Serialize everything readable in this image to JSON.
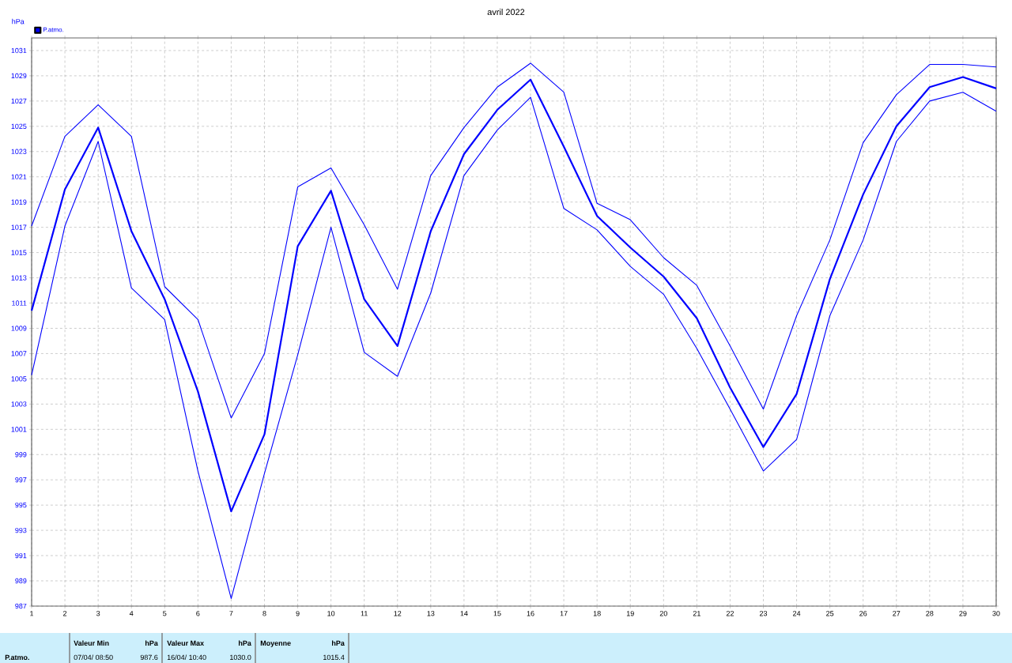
{
  "chart_data": {
    "type": "line",
    "title": "avril 2022",
    "ylabel": "hPa",
    "x": [
      1,
      2,
      3,
      4,
      5,
      6,
      7,
      8,
      9,
      10,
      11,
      12,
      13,
      14,
      15,
      16,
      17,
      18,
      19,
      20,
      21,
      22,
      23,
      24,
      25,
      26,
      27,
      28,
      29,
      30
    ],
    "series": [
      {
        "color": "#0000ff",
        "values": [
          1017.1,
          1024.2,
          1026.7,
          1024.2,
          1012.3,
          1009.7,
          1001.9,
          1007.0,
          1020.2,
          1021.7,
          1017.2,
          1012.1,
          1021.1,
          1024.9,
          1028.1,
          1030.0,
          1027.7,
          1018.9,
          1017.6,
          1014.6,
          1012.4,
          1007.6,
          1002.6,
          1010.0,
          1016.0,
          1023.7,
          1027.5,
          1029.9,
          1029.9,
          1029.7
        ]
      },
      {
        "name": "P.atmo.",
        "color": "#0000ff",
        "values": [
          1010.4,
          1020.0,
          1024.9,
          1016.7,
          1011.3,
          1004.0,
          994.5,
          1000.6,
          1015.5,
          1019.9,
          1011.3,
          1007.6,
          1016.7,
          1022.8,
          1026.3,
          1028.7,
          1023.4,
          1017.9,
          1015.4,
          1013.1,
          1009.8,
          1004.3,
          999.6,
          1003.8,
          1012.9,
          1019.6,
          1025.0,
          1028.1,
          1028.9,
          1028.0
        ]
      },
      {
        "color": "#0000ff",
        "values": [
          1005.3,
          1017.1,
          1023.8,
          1012.2,
          1009.7,
          997.7,
          987.6,
          997.5,
          1006.9,
          1017.0,
          1007.1,
          1005.2,
          1011.8,
          1021.1,
          1024.7,
          1027.3,
          1018.5,
          1016.8,
          1013.9,
          1011.7,
          1007.4,
          1002.6,
          997.7,
          1000.2,
          1010.0,
          1016.0,
          1023.8,
          1027.0,
          1027.7,
          1026.2
        ]
      }
    ],
    "xlim": [
      1,
      30
    ],
    "xticks": [
      1,
      2,
      3,
      4,
      5,
      6,
      7,
      8,
      9,
      10,
      11,
      12,
      13,
      14,
      15,
      16,
      17,
      18,
      19,
      20,
      21,
      22,
      23,
      24,
      25,
      26,
      27,
      28,
      29,
      30
    ],
    "ylim": [
      987,
      1032
    ],
    "yticks": [
      987,
      989,
      991,
      993,
      995,
      997,
      999,
      1001,
      1003,
      1005,
      1007,
      1009,
      1011,
      1013,
      1015,
      1017,
      1019,
      1021,
      1023,
      1025,
      1027,
      1029,
      1031
    ],
    "grid": true,
    "legend": "top left",
    "marker": "none",
    "line_style": "solid",
    "annotations": [
      "P.atmo.",
      "Valeur Min",
      "hPa",
      "07/04/ 08:50",
      "987.6",
      "Valeur Max",
      "hPa",
      "16/04/ 10:40",
      "1030.0",
      "Moyenne",
      "hPa",
      "1015.4"
    ]
  }
}
